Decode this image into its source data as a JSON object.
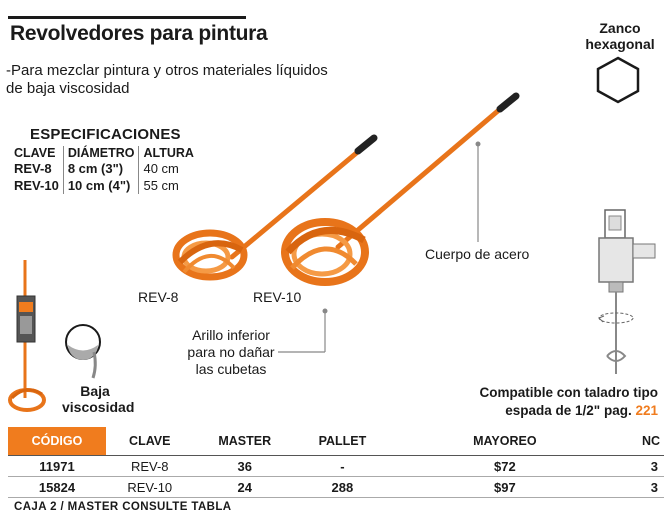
{
  "header": {
    "title": "Revolvedores para pintura"
  },
  "description": "-Para mezclar pintura y otros materiales líquidos de baja viscosidad",
  "specs": {
    "title": "ESPECIFICACIONES",
    "columns": [
      "CLAVE",
      "DIÁMETRO",
      "ALTURA"
    ],
    "rows": [
      [
        "REV-8",
        "8 cm (3\")",
        "40 cm"
      ],
      [
        "REV-10",
        "10 cm (4\")",
        "55 cm"
      ]
    ]
  },
  "zanco": {
    "line1": "Zanco",
    "line2": "hexagonal"
  },
  "callouts": {
    "rev8": "REV-8",
    "rev10": "REV-10",
    "cuerpo": "Cuerpo de acero",
    "arillo1": "Arillo inferior",
    "arillo2": "para no dañar",
    "arillo3": "las cubetas",
    "baja1": "Baja",
    "baja2": "viscosidad"
  },
  "compat": {
    "line1": "Compatible con taladro tipo",
    "line2_pre": "espada de ",
    "fraction": "1/2\"",
    "line2_mid": " pag. ",
    "page": "221"
  },
  "table": {
    "headers": [
      "CÓDIGO",
      "CLAVE",
      "MASTER",
      "PALLET",
      "MAYOREO",
      "NC"
    ],
    "rows": [
      [
        "11971",
        "REV-8",
        "36",
        "-",
        "$72",
        "3"
      ],
      [
        "15824",
        "REV-10",
        "24",
        "288",
        "$97",
        "3"
      ]
    ]
  },
  "footer": "CAJA 2 / MASTER CONSULTE TABLA",
  "colors": {
    "accent": "#f07c1e",
    "text": "#1a1a1a"
  }
}
